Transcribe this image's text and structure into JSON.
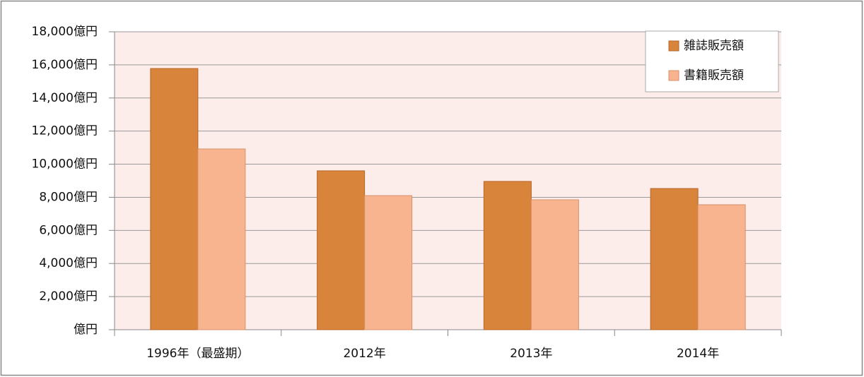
{
  "chart_data": {
    "type": "bar",
    "categories": [
      "1996年（最盛期）",
      "2012年",
      "2013年",
      "2014年"
    ],
    "series": [
      {
        "name": "雑誌販売額",
        "color": "#d9843b",
        "values": [
          15780,
          9600,
          8960,
          8530
        ]
      },
      {
        "name": "書籍販売額",
        "color": "#f8b48e",
        "values": [
          10920,
          8100,
          7850,
          7550
        ]
      }
    ],
    "ylim": [
      0,
      18000
    ],
    "yticks": [
      {
        "value": 0,
        "label": "億円"
      },
      {
        "value": 2000,
        "label": "2,000億円"
      },
      {
        "value": 4000,
        "label": "4,000億円"
      },
      {
        "value": 6000,
        "label": "6,000億円"
      },
      {
        "value": 8000,
        "label": "8,000億円"
      },
      {
        "value": 10000,
        "label": "10,000億円"
      },
      {
        "value": 12000,
        "label": "12,000億円"
      },
      {
        "value": 14000,
        "label": "14,000億円"
      },
      {
        "value": 16000,
        "label": "16,000億円"
      },
      {
        "value": 18000,
        "label": "18,000億円"
      }
    ],
    "grid": true,
    "legend": "top-right"
  }
}
